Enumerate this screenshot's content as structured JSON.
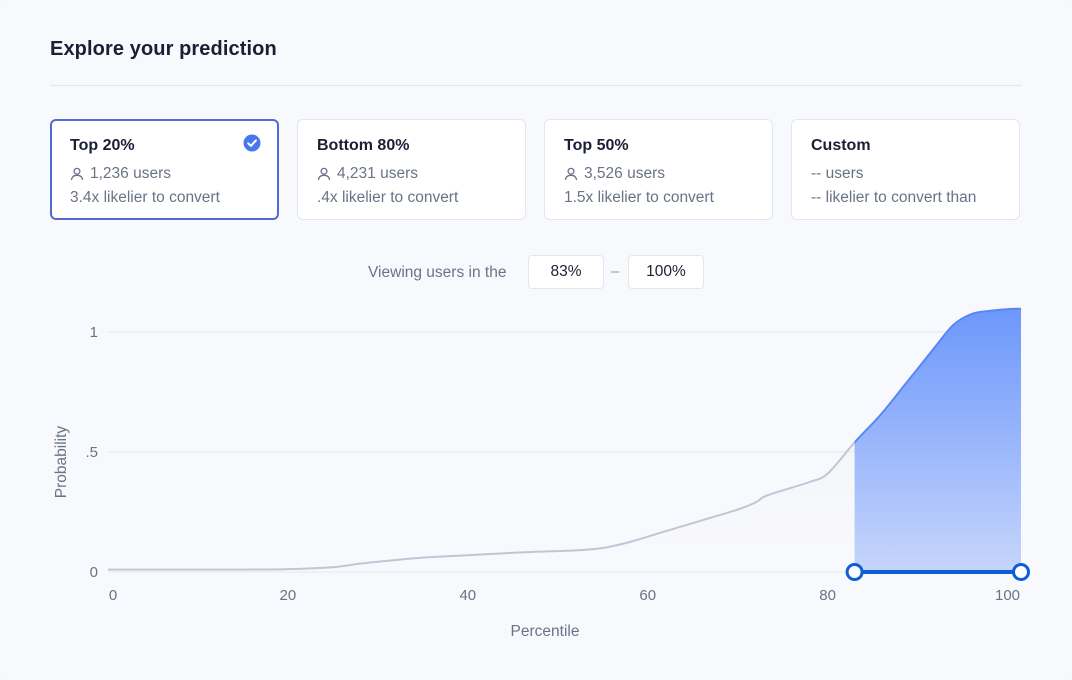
{
  "header": {
    "title": "Explore your prediction"
  },
  "cards": [
    {
      "name": "Top 20%",
      "users": "1,236 users",
      "lift": "3.4x likelier to convert",
      "selected": true
    },
    {
      "name": "Bottom 80%",
      "users": "4,231 users",
      "lift": ".4x likelier to convert",
      "selected": false
    },
    {
      "name": "Top 50%",
      "users": "3,526 users",
      "lift": "1.5x likelier to convert",
      "selected": false
    },
    {
      "name": "Custom",
      "users": "-- users",
      "lift": "-- likelier to convert than",
      "selected": false
    }
  ],
  "range": {
    "label": "Viewing users in the",
    "from": "83%",
    "separator": "–",
    "to": "100%"
  },
  "colors": {
    "accent": "#5469d4",
    "fill_top": "#6c97fb",
    "fill_bottom": "#c6d5fb",
    "curve_gray": "#c1c6d6",
    "handle": "#0b5fd7"
  },
  "chart_data": {
    "type": "area",
    "xlabel": "Percentile",
    "ylabel": "Probability",
    "xlim": [
      0,
      101.5
    ],
    "ylim": [
      0,
      1.1
    ],
    "x_ticks": [
      {
        "value": 0,
        "label": "0"
      },
      {
        "value": 20,
        "label": "20"
      },
      {
        "value": 40,
        "label": "40"
      },
      {
        "value": 60,
        "label": "60"
      },
      {
        "value": 80,
        "label": "80"
      },
      {
        "value": 100,
        "label": "100"
      }
    ],
    "y_ticks": [
      {
        "value": 0,
        "label": "0"
      },
      {
        "value": 0.5,
        "label": ".5"
      },
      {
        "value": 1,
        "label": "1"
      }
    ],
    "grid": "horizontal",
    "selected_range": [
      83,
      101.5
    ],
    "series": [
      {
        "x": [
          0,
          5,
          10,
          15,
          20,
          25,
          28,
          32,
          35,
          40,
          45,
          48,
          52,
          55,
          58,
          62,
          66,
          70,
          72,
          73,
          75,
          78,
          80,
          83,
          86,
          89,
          92,
          94,
          96,
          98,
          100,
          101.5
        ],
        "y": [
          0.01,
          0.01,
          0.01,
          0.01,
          0.012,
          0.02,
          0.035,
          0.05,
          0.06,
          0.07,
          0.08,
          0.085,
          0.09,
          0.1,
          0.125,
          0.17,
          0.215,
          0.26,
          0.29,
          0.315,
          0.34,
          0.375,
          0.41,
          0.54,
          0.66,
          0.8,
          0.94,
          1.03,
          1.075,
          1.088,
          1.095,
          1.097
        ]
      }
    ]
  }
}
